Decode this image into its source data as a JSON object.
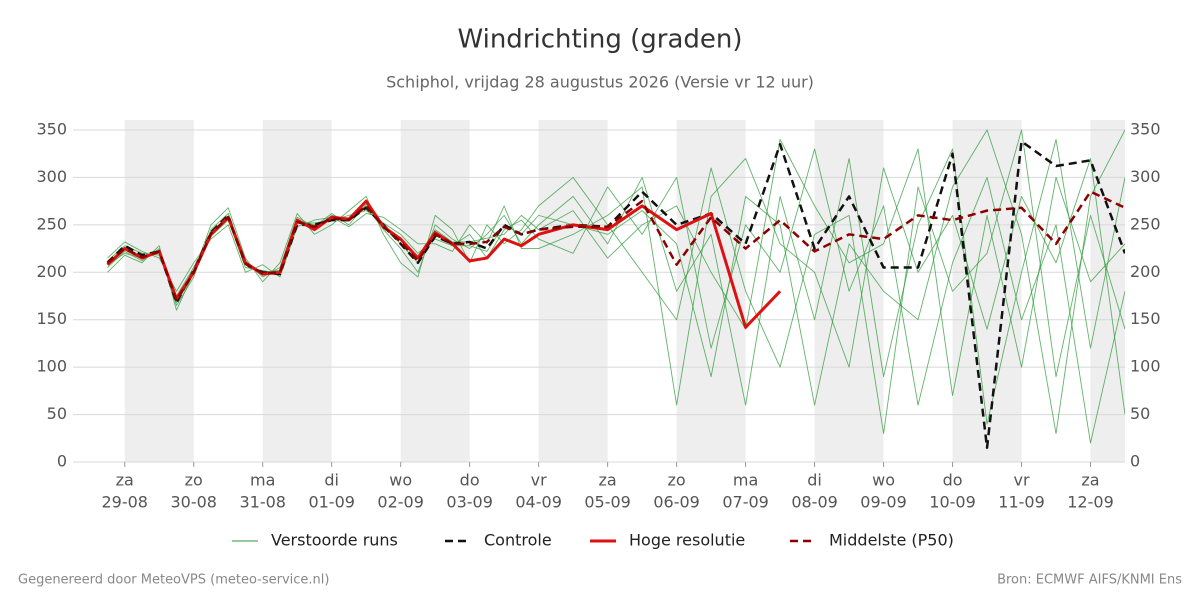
{
  "chart_data": {
    "type": "line",
    "title": "Windrichting (graden)",
    "subtitle": "Schiphol, vrijdag 28 augustus 2026 (Versie vr 12 uur)",
    "footer_left": "Gegenereerd door MeteoVPS (meteo-service.nl)",
    "footer_right": "Bron: ECMWF AIFS/KNMI Ens",
    "xlim": [
      -0.75,
      14.5
    ],
    "xticks": [
      {
        "value": 0,
        "label": [
          "za",
          "29-08"
        ]
      },
      {
        "value": 1,
        "label": [
          "zo",
          "30-08"
        ]
      },
      {
        "value": 2,
        "label": [
          "ma",
          "31-08"
        ]
      },
      {
        "value": 3,
        "label": [
          "di",
          "01-09"
        ]
      },
      {
        "value": 4,
        "label": [
          "wo",
          "02-09"
        ]
      },
      {
        "value": 5,
        "label": [
          "do",
          "03-09"
        ]
      },
      {
        "value": 6,
        "label": [
          "vr",
          "04-09"
        ]
      },
      {
        "value": 7,
        "label": [
          "za",
          "05-09"
        ]
      },
      {
        "value": 8,
        "label": [
          "zo",
          "06-09"
        ]
      },
      {
        "value": 9,
        "label": [
          "ma",
          "07-09"
        ]
      },
      {
        "value": 10,
        "label": [
          "di",
          "08-09"
        ]
      },
      {
        "value": 11,
        "label": [
          "wo",
          "09-09"
        ]
      },
      {
        "value": 12,
        "label": [
          "do",
          "10-09"
        ]
      },
      {
        "value": 13,
        "label": [
          "vr",
          "11-09"
        ]
      },
      {
        "value": 14,
        "label": [
          "za",
          "12-09"
        ]
      }
    ],
    "ylim": [
      0,
      350
    ],
    "yticks": [
      0,
      50,
      100,
      150,
      200,
      250,
      300,
      350
    ],
    "grid": true,
    "x": [
      -0.25,
      0,
      0.25,
      0.5,
      0.75,
      1,
      1.25,
      1.5,
      1.75,
      2,
      2.25,
      2.5,
      2.75,
      3,
      3.25,
      3.5,
      3.75,
      4,
      4.25,
      4.5,
      4.75,
      5,
      5.25,
      5.5,
      5.75,
      6,
      6.5,
      7,
      7.5,
      8,
      8.5,
      9,
      9.5,
      10,
      10.5,
      11,
      11.5,
      12,
      12.5,
      13,
      13.5,
      14,
      14.5
    ],
    "ensemble": {
      "name": "Verstoorde runs",
      "color": "#2e9a3a",
      "members": [
        [
          205,
          222,
          212,
          225,
          165,
          195,
          245,
          262,
          212,
          195,
          205,
          258,
          248,
          262,
          250,
          272,
          245,
          225,
          200,
          250,
          235,
          225,
          240,
          260,
          230,
          250,
          280,
          230,
          300,
          180,
          240,
          60,
          280,
          150,
          320,
          90,
          250,
          330,
          40,
          200,
          340,
          120,
          300
        ],
        [
          212,
          228,
          220,
          218,
          175,
          205,
          238,
          255,
          205,
          202,
          198,
          252,
          252,
          255,
          260,
          265,
          252,
          240,
          220,
          235,
          228,
          240,
          215,
          245,
          255,
          235,
          220,
          290,
          240,
          300,
          120,
          250,
          200,
          330,
          180,
          270,
          60,
          210,
          300,
          150,
          250,
          20,
          180
        ],
        [
          200,
          218,
          210,
          228,
          160,
          200,
          250,
          268,
          215,
          190,
          210,
          262,
          240,
          250,
          265,
          280,
          240,
          210,
          195,
          260,
          245,
          210,
          250,
          230,
          245,
          270,
          300,
          250,
          200,
          150,
          310,
          180,
          100,
          240,
          260,
          30,
          290,
          180,
          220,
          350,
          90,
          260,
          140
        ],
        [
          215,
          232,
          222,
          215,
          180,
          210,
          235,
          250,
          200,
          208,
          195,
          248,
          255,
          258,
          248,
          262,
          258,
          245,
          230,
          230,
          222,
          250,
          230,
          270,
          225,
          225,
          240,
          260,
          290,
          60,
          280,
          320,
          230,
          200,
          100,
          310,
          200,
          260,
          140,
          280,
          210,
          320,
          50
        ],
        [
          208,
          220,
          215,
          222,
          170,
          198,
          242,
          258,
          210,
          200,
          202,
          256,
          246,
          260,
          256,
          270,
          248,
          230,
          210,
          245,
          232,
          232,
          236,
          240,
          260,
          245,
          265,
          215,
          250,
          270,
          200,
          140,
          340,
          270,
          210,
          230,
          330,
          70,
          260,
          100,
          300,
          190,
          230
        ],
        [
          210,
          226,
          216,
          220,
          168,
          202,
          240,
          256,
          208,
          198,
          200,
          254,
          250,
          256,
          254,
          268,
          246,
          236,
          215,
          240,
          228,
          228,
          222,
          250,
          240,
          260,
          250,
          240,
          265,
          230,
          90,
          280,
          250,
          60,
          230,
          180,
          150,
          290,
          350,
          240,
          30,
          280,
          350
        ]
      ]
    },
    "series": [
      {
        "name": "Controle",
        "color": "#111111",
        "dash": true,
        "values": [
          210,
          228,
          218,
          222,
          168,
          202,
          242,
          260,
          208,
          200,
          198,
          250,
          250,
          255,
          255,
          268,
          250,
          230,
          210,
          238,
          230,
          232,
          225,
          250,
          240,
          245,
          250,
          248,
          285,
          250,
          262,
          230,
          335,
          225,
          280,
          205,
          205,
          325,
          15,
          338,
          312,
          318,
          220
        ]
      },
      {
        "name": "Hoge resolutie",
        "color": "#dd1111",
        "dash": false,
        "values": [
          208,
          225,
          215,
          222,
          172,
          200,
          240,
          258,
          210,
          198,
          200,
          255,
          245,
          258,
          256,
          275,
          248,
          235,
          215,
          242,
          230,
          212,
          215,
          235,
          228,
          240,
          250,
          245,
          270,
          245,
          262,
          142,
          180,
          null,
          null,
          null,
          null,
          null,
          null,
          null,
          null,
          null,
          null
        ]
      },
      {
        "name": "Middelste (P50)",
        "color": "#8b0000",
        "dash": true,
        "values": [
          210,
          225,
          216,
          222,
          170,
          200,
          241,
          258,
          209,
          199,
          200,
          253,
          248,
          257,
          255,
          270,
          248,
          232,
          212,
          240,
          230,
          230,
          232,
          248,
          240,
          245,
          248,
          248,
          275,
          208,
          258,
          225,
          255,
          222,
          240,
          235,
          260,
          255,
          265,
          268,
          230,
          285,
          268
        ]
      }
    ]
  }
}
